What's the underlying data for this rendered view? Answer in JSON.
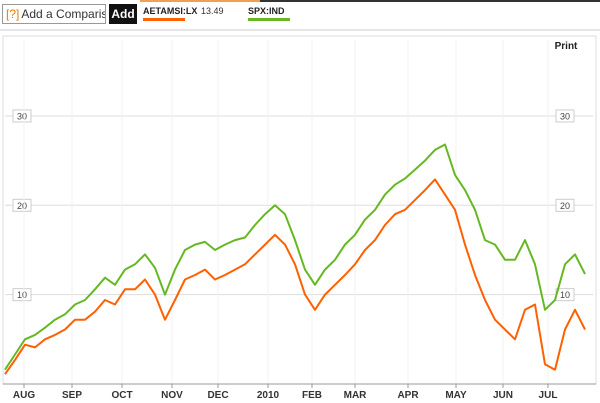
{
  "toolbar": {
    "help": "[?]",
    "input_placeholder": "Add a Comparison",
    "button": "Add",
    "print": "Print"
  },
  "chart_data": {
    "type": "line",
    "series": [
      {
        "name": "AETAMSI:LX",
        "color": "#ff6000",
        "price": 13.49,
        "values": [
          1.1,
          2.7,
          4.4,
          4.1,
          5,
          5.5,
          6.1,
          7.2,
          7.2,
          8.1,
          9.4,
          8.9,
          10.6,
          10.6,
          11.7,
          10,
          7.2,
          9.4,
          11.7,
          12.2,
          12.8,
          11.7,
          12.2,
          12.8,
          13.4,
          14.5,
          15.6,
          16.7,
          15.6,
          13.4,
          10,
          8.3,
          10,
          11.1,
          12.2,
          13.4,
          15,
          16.1,
          17.8,
          19,
          19.5,
          20.6,
          21.7,
          22.9,
          21.2,
          19.5,
          15.6,
          12.2,
          9.4,
          7.2,
          6.1,
          5,
          8.3,
          8.9,
          2.2,
          1.6,
          6.1,
          8.3,
          6.1
        ]
      },
      {
        "name": "SPX:IND",
        "color": "#66b822",
        "values": [
          1.6,
          3.3,
          5,
          5.5,
          6.3,
          7.2,
          7.8,
          8.9,
          9.4,
          10.6,
          11.9,
          11.1,
          12.8,
          13.4,
          14.5,
          13,
          10,
          12.8,
          15,
          15.6,
          15.9,
          15,
          15.6,
          16.1,
          16.4,
          17.8,
          19,
          20,
          19,
          16.1,
          12.8,
          11.1,
          12.8,
          13.9,
          15.6,
          16.7,
          18.4,
          19.5,
          21.2,
          22.3,
          23,
          24,
          25,
          26.2,
          26.8,
          23.4,
          21.7,
          19.5,
          16.1,
          15.6,
          13.9,
          13.9,
          16.1,
          13.4,
          8.3,
          9.4,
          13.4,
          14.5,
          12.3
        ]
      }
    ],
    "xlim": [
      0,
      58
    ],
    "xticks": [
      {
        "value": 1.9,
        "label": "AUG"
      },
      {
        "value": 6.7,
        "label": "SEP"
      },
      {
        "value": 11.7,
        "label": "OCT"
      },
      {
        "value": 16.7,
        "label": "NOV"
      },
      {
        "value": 21.3,
        "label": "DEC"
      },
      {
        "value": 26.3,
        "label": "2010"
      },
      {
        "value": 30.7,
        "label": "FEB"
      },
      {
        "value": 35,
        "label": "MAR"
      },
      {
        "value": 40.3,
        "label": "APR"
      },
      {
        "value": 45.1,
        "label": "MAY"
      },
      {
        "value": 49.8,
        "label": "JUN"
      },
      {
        "value": 54.3,
        "label": "JUL"
      }
    ],
    "ylim": [
      0,
      38.5
    ],
    "yticks": [
      10,
      20,
      30
    ],
    "grid": true
  }
}
